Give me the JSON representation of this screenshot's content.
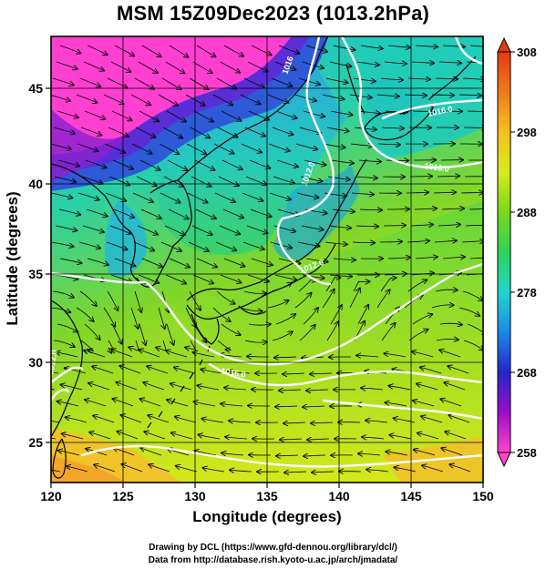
{
  "title": "MSM 15Z09Dec2023 (1013.2hPa)",
  "x_axis": {
    "label": "Longitude (degrees)",
    "range": [
      120,
      150
    ],
    "ticks": [
      "120",
      "125",
      "130",
      "135",
      "140",
      "145",
      "150"
    ]
  },
  "y_axis": {
    "label": "Latitude  (degrees)",
    "range": [
      22.5,
      47.6
    ],
    "ticks": [
      "25",
      "30",
      "35",
      "40",
      "45"
    ]
  },
  "colorbar": {
    "range": [
      258,
      308
    ],
    "ticks": [
      "258",
      "268",
      "278",
      "288",
      "298",
      "308"
    ],
    "colors": [
      "#ff44cc",
      "#9a10c8",
      "#2525cc",
      "#1a8ae6",
      "#21d6cc",
      "#2ed35a",
      "#7ad81b",
      "#d4ec1a",
      "#f6c020",
      "#f07a1a",
      "#e53a14"
    ]
  },
  "contour_labels": [
    "1012.0",
    "1016.0",
    "1016.0",
    "1012.0",
    "1016.0",
    "1012.0",
    "1016"
  ],
  "map_colors": {
    "land_coast": "#000000",
    "contour": "#ffffff",
    "streamline": "#000000"
  },
  "credits": {
    "line1": "Drawing by DCL (https://www.gfd-dennou.org/library/dcl/)",
    "line2": "Data from http://database.rish.kyoto-u.ac.jp/arch/jmadata/"
  }
}
